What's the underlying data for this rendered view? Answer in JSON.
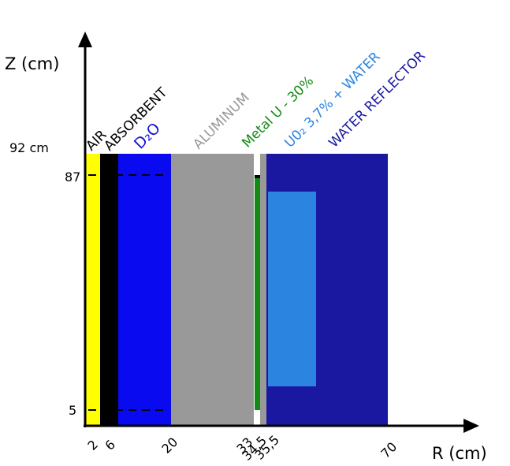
{
  "axes": {
    "z_label": "Z (cm)",
    "r_label": "R (cm)"
  },
  "z_ticks": [
    "92 cm",
    "87",
    "5"
  ],
  "r_ticks": [
    "2",
    "6",
    "20",
    "33",
    "34,5",
    "35,5",
    "70"
  ],
  "regions": [
    "AIR",
    "ABSORBENT",
    "D₂O",
    "ALUMINUM",
    "Metal U - 30%",
    "U0₂ 3,7% + WATER",
    "WATER REFLECTOR"
  ]
}
